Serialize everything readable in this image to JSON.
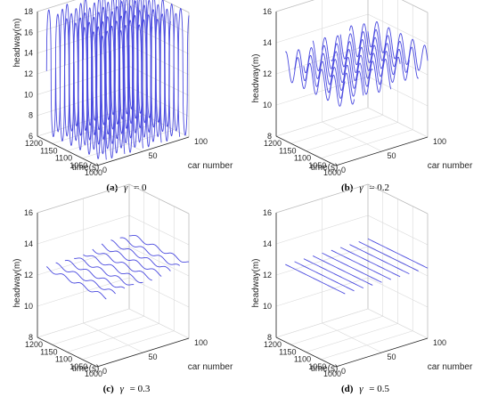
{
  "figure": {
    "line_color": "#4a4adf",
    "axis_color": "#262626",
    "grid_color": "#d9d9d9"
  },
  "chart_data": [
    {
      "type": "line",
      "panel_tag": "(a)",
      "caption_symbol": "γ",
      "caption_value": "= 0",
      "xlabel": "car number",
      "ylabel": "time(s)",
      "zlabel": "headway(m)",
      "xlim": [
        0,
        100
      ],
      "ylim": [
        1000,
        1200
      ],
      "zlim": [
        6,
        18
      ],
      "x_ticks": [
        "0",
        "50",
        "100"
      ],
      "y_ticks": [
        "1000",
        "1050",
        "1100",
        "1150",
        "1200"
      ],
      "z_ticks": [
        "6",
        "8",
        "10",
        "12",
        "14",
        "16",
        "18"
      ],
      "series_cars": [
        10,
        20,
        30,
        40,
        50,
        60,
        70,
        80,
        90,
        100
      ],
      "base_headway": 12,
      "amplitude": 6,
      "period_s": 30,
      "wave_speed": 1.5
    },
    {
      "type": "line",
      "panel_tag": "(b)",
      "caption_symbol": "γ",
      "caption_value": "= 0.2",
      "xlabel": "car number",
      "ylabel": "time(s)",
      "zlabel": "headway(m)",
      "xlim": [
        0,
        100
      ],
      "ylim": [
        1000,
        1200
      ],
      "zlim": [
        8,
        16
      ],
      "x_ticks": [
        "0",
        "50",
        "100"
      ],
      "y_ticks": [
        "1000",
        "1050",
        "1100",
        "1150",
        "1200"
      ],
      "z_ticks": [
        "8",
        "10",
        "12",
        "14",
        "16"
      ],
      "series_cars": [
        10,
        20,
        30,
        40,
        50,
        60,
        70,
        80,
        90,
        100
      ],
      "base_headway": 12.6,
      "amplitude": 0.9,
      "period_s": 40,
      "wave_speed": 1.2
    },
    {
      "type": "line",
      "panel_tag": "(c)",
      "caption_symbol": "γ",
      "caption_value": "= 0.3",
      "xlabel": "car number",
      "ylabel": "time(s)",
      "zlabel": "headway(m)",
      "xlim": [
        0,
        100
      ],
      "ylim": [
        1000,
        1200
      ],
      "zlim": [
        8,
        16
      ],
      "x_ticks": [
        "0",
        "50",
        "100"
      ],
      "y_ticks": [
        "1000",
        "1050",
        "1100",
        "1150",
        "1200"
      ],
      "z_ticks": [
        "8",
        "10",
        "12",
        "14",
        "16"
      ],
      "series_cars": [
        10,
        20,
        30,
        40,
        50,
        60,
        70,
        80,
        90,
        100
      ],
      "base_headway": 12.5,
      "amplitude": 0.12,
      "period_s": 60,
      "wave_speed": 1.0
    },
    {
      "type": "line",
      "panel_tag": "(d)",
      "caption_symbol": "γ",
      "caption_value": "= 0.5",
      "xlabel": "car number",
      "ylabel": "time(s)",
      "zlabel": "headway(m)",
      "xlim": [
        0,
        100
      ],
      "ylim": [
        1000,
        1200
      ],
      "zlim": [
        8,
        16
      ],
      "x_ticks": [
        "0",
        "50",
        "100"
      ],
      "y_ticks": [
        "1000",
        "1050",
        "1100",
        "1150",
        "1200"
      ],
      "z_ticks": [
        "8",
        "10",
        "12",
        "14",
        "16"
      ],
      "series_cars": [
        10,
        20,
        30,
        40,
        50,
        60,
        70,
        80,
        90,
        100
      ],
      "base_headway": 12.5,
      "amplitude": 0,
      "period_s": 60,
      "wave_speed": 1.0
    }
  ]
}
